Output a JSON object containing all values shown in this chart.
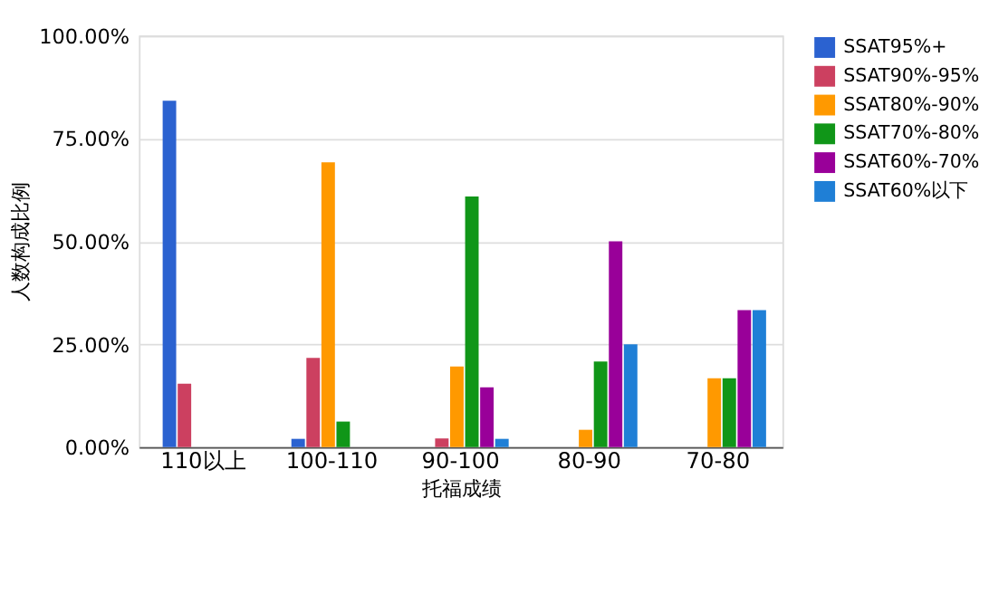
{
  "chart_data": {
    "type": "bar",
    "xlabel": "托福成绩",
    "ylabel": "人数构成比例",
    "categories": [
      "110以上",
      "100-110",
      "90-100",
      "80-90",
      "70-80"
    ],
    "series": [
      {
        "name": "SSAT95%+",
        "color": "#2b62d0",
        "values": [
          84.2,
          2,
          0,
          0,
          0
        ]
      },
      {
        "name": "SSAT90%-95%",
        "color": "#cc4060",
        "values": [
          15.4,
          21.7,
          2.1,
          0,
          0
        ]
      },
      {
        "name": "SSAT80%-90%",
        "color": "#ff9900",
        "values": [
          0,
          69.2,
          19.6,
          4.2,
          16.7
        ]
      },
      {
        "name": "SSAT70%-80%",
        "color": "#109618",
        "values": [
          0,
          6.2,
          60.9,
          20.8,
          16.7
        ]
      },
      {
        "name": "SSAT60%-70%",
        "color": "#990099",
        "values": [
          0,
          0,
          14.5,
          50,
          33.3
        ]
      },
      {
        "name": "SSAT60%以下",
        "color": "#1f7fd6",
        "values": [
          0,
          0,
          2,
          25,
          33.3
        ]
      }
    ],
    "ylim": [
      0,
      100
    ],
    "yticks": [
      {
        "value": 0,
        "label": "0.00%"
      },
      {
        "value": 25,
        "label": "25.00%"
      },
      {
        "value": 50,
        "label": "50.00%"
      },
      {
        "value": 75,
        "label": "75.00%"
      },
      {
        "value": 100,
        "label": "100.00%"
      }
    ],
    "grid": "y",
    "legend": "top right"
  }
}
